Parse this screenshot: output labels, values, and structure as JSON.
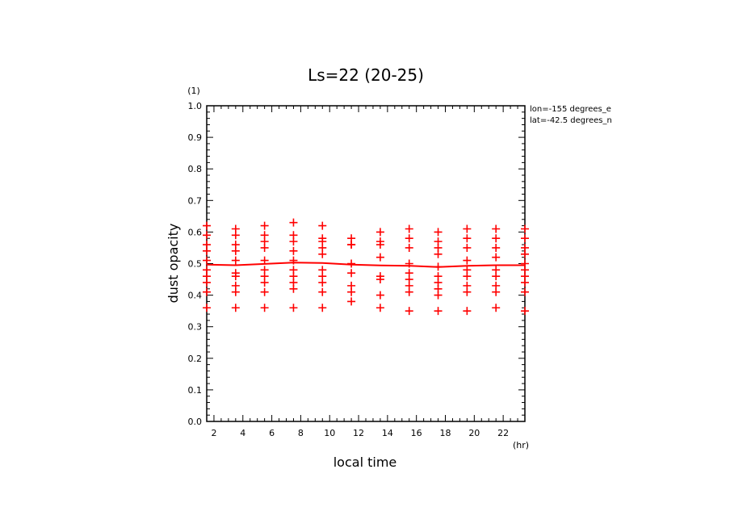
{
  "chart_data": {
    "type": "scatter",
    "title": "Ls=22 (20-25)",
    "xlabel": "local time",
    "ylabel": "dust opacity",
    "x_unit": "(hr)",
    "y_unit": "(1)",
    "xlim": [
      1.5,
      23.5
    ],
    "ylim": [
      0.0,
      1.0
    ],
    "x_ticks": [
      "2",
      "4",
      "6",
      "8",
      "10",
      "12",
      "14",
      "16",
      "18",
      "20",
      "22"
    ],
    "y_ticks": [
      "0.0",
      "0.1",
      "0.2",
      "0.3",
      "0.4",
      "0.5",
      "0.6",
      "0.7",
      "0.8",
      "0.9",
      "1.0"
    ],
    "annotations": [
      "lon=-155 degrees_e",
      "lat=-42.5 degrees_n"
    ],
    "grid": false,
    "colors": {
      "data": "#ff0000",
      "axes": "#000000"
    },
    "points": [
      {
        "x": 1.5,
        "ys": [
          0.62,
          0.59,
          0.56,
          0.54,
          0.51,
          0.48,
          0.46,
          0.44,
          0.41,
          0.36
        ]
      },
      {
        "x": 3.5,
        "ys": [
          0.61,
          0.59,
          0.56,
          0.54,
          0.51,
          0.47,
          0.46,
          0.43,
          0.41,
          0.36
        ]
      },
      {
        "x": 5.5,
        "ys": [
          0.62,
          0.59,
          0.57,
          0.55,
          0.51,
          0.48,
          0.46,
          0.44,
          0.41,
          0.36
        ]
      },
      {
        "x": 7.5,
        "ys": [
          0.63,
          0.59,
          0.57,
          0.54,
          0.51,
          0.48,
          0.46,
          0.44,
          0.42,
          0.36
        ]
      },
      {
        "x": 9.5,
        "ys": [
          0.62,
          0.58,
          0.57,
          0.55,
          0.53,
          0.48,
          0.46,
          0.44,
          0.41,
          0.36
        ]
      },
      {
        "x": 11.5,
        "ys": [
          0.58,
          0.56,
          0.56,
          0.5,
          0.47,
          0.43,
          0.41,
          0.38
        ]
      },
      {
        "x": 13.5,
        "ys": [
          0.6,
          0.57,
          0.56,
          0.52,
          0.46,
          0.45,
          0.4,
          0.36
        ]
      },
      {
        "x": 15.5,
        "ys": [
          0.61,
          0.58,
          0.55,
          0.5,
          0.47,
          0.45,
          0.43,
          0.41,
          0.35
        ]
      },
      {
        "x": 17.5,
        "ys": [
          0.6,
          0.57,
          0.55,
          0.53,
          0.49,
          0.46,
          0.44,
          0.42,
          0.4,
          0.35
        ]
      },
      {
        "x": 19.5,
        "ys": [
          0.61,
          0.58,
          0.55,
          0.51,
          0.48,
          0.46,
          0.43,
          0.41,
          0.35
        ]
      },
      {
        "x": 21.5,
        "ys": [
          0.61,
          0.58,
          0.55,
          0.52,
          0.48,
          0.46,
          0.43,
          0.41,
          0.36
        ]
      },
      {
        "x": 23.5,
        "ys": [
          0.61,
          0.58,
          0.55,
          0.53,
          0.5,
          0.48,
          0.46,
          0.44,
          0.41,
          0.35
        ]
      }
    ],
    "line": {
      "x": [
        1.5,
        3.5,
        5.5,
        7.5,
        9.5,
        11.5,
        13.5,
        15.5,
        17.5,
        19.5,
        21.5,
        23.5
      ],
      "y": [
        0.497,
        0.495,
        0.499,
        0.503,
        0.502,
        0.497,
        0.494,
        0.493,
        0.489,
        0.493,
        0.495,
        0.495
      ]
    }
  }
}
